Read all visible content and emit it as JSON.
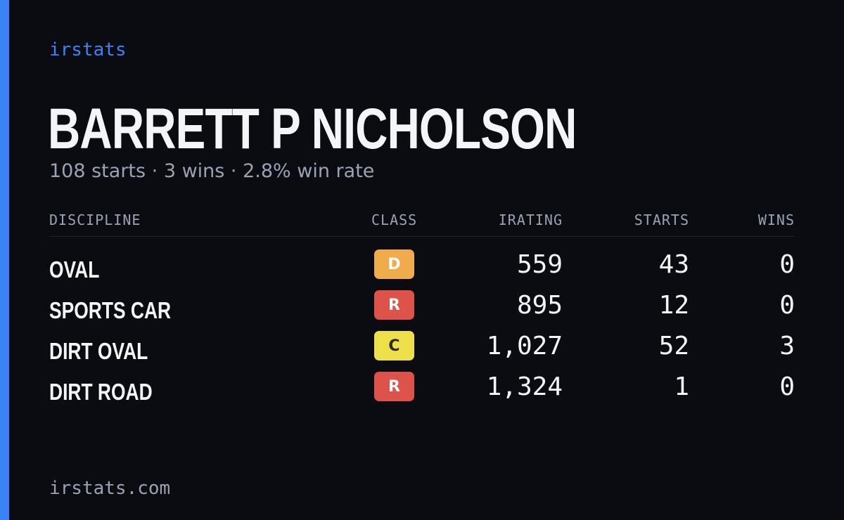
{
  "brand": "irstats",
  "driver": {
    "name": "BARRETT P NICHOLSON",
    "summary": "108 starts · 3 wins · 2.8% win rate"
  },
  "colors": {
    "accent": "#3b82f6",
    "background": "#0a0c12",
    "class_D": "#f0ab4a",
    "class_R": "#de5349",
    "class_C": "#eee04a"
  },
  "table": {
    "headers": {
      "discipline": "DISCIPLINE",
      "class": "CLASS",
      "irating": "IRATING",
      "starts": "STARTS",
      "wins": "WINS"
    },
    "rows": [
      {
        "discipline": "OVAL",
        "class": "D",
        "class_color": "#f0ab4a",
        "class_text_color": "#ffffff",
        "irating": "559",
        "starts": "43",
        "wins": "0"
      },
      {
        "discipline": "SPORTS CAR",
        "class": "R",
        "class_color": "#de5349",
        "class_text_color": "#ffffff",
        "irating": "895",
        "starts": "12",
        "wins": "0"
      },
      {
        "discipline": "DIRT OVAL",
        "class": "C",
        "class_color": "#eee04a",
        "class_text_color": "#2a2a12",
        "irating": "1,027",
        "starts": "52",
        "wins": "3"
      },
      {
        "discipline": "DIRT ROAD",
        "class": "R",
        "class_color": "#de5349",
        "class_text_color": "#ffffff",
        "irating": "1,324",
        "starts": "1",
        "wins": "0"
      }
    ]
  },
  "footer": "irstats.com"
}
